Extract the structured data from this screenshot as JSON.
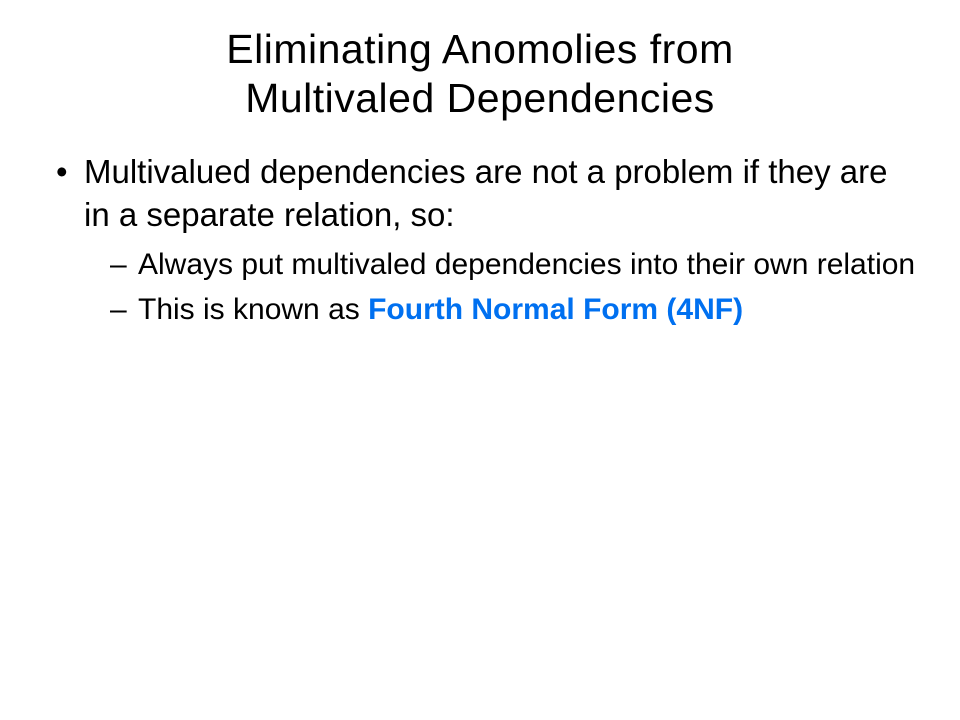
{
  "slide": {
    "title_line1": "Eliminating Anomolies from",
    "title_line2": "Multivaled Dependencies",
    "bullet1": "Multivalued dependencies are not a problem if they are in a separate relation, so:",
    "sub1": "Always put multivaled dependencies into their own relation",
    "sub2_prefix": "This is known as ",
    "sub2_highlight": "Fourth Normal Form (4NF)"
  },
  "styling": {
    "background_color": "#ffffff",
    "text_color": "#000000",
    "highlight_color": "#0070f0",
    "title_fontsize": 41,
    "bullet_fontsize": 33,
    "sub_fontsize": 30,
    "font_family": "Arial"
  }
}
